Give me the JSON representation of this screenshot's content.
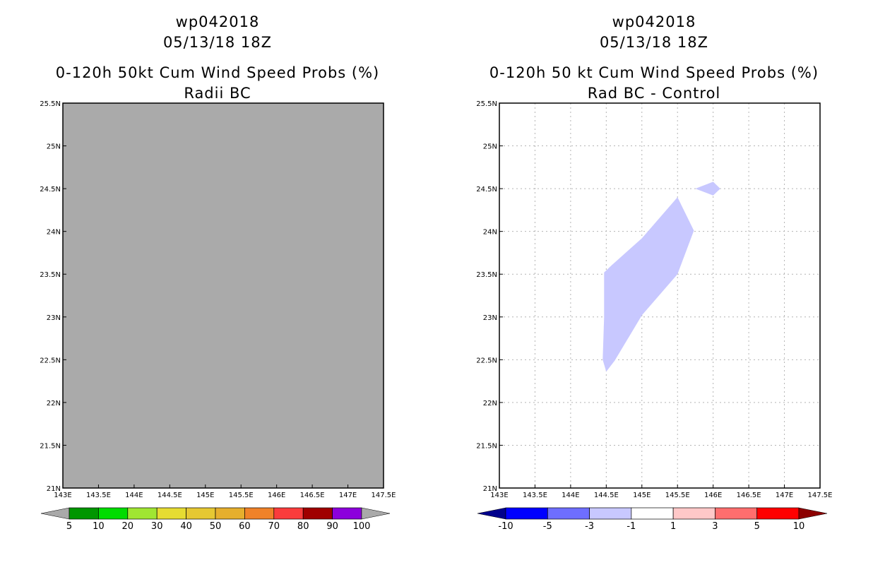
{
  "chart_data": [
    {
      "type": "heatmap",
      "title_lines": [
        "wp042018",
        "05/13/18 18Z",
        "0-120h 50kt Cum Wind Speed Probs (%)",
        "Radii BC"
      ],
      "xlim": [
        143,
        147.5
      ],
      "ylim": [
        21,
        25.5
      ],
      "x_ticks": [
        143,
        143.5,
        144,
        144.5,
        145,
        145.5,
        146,
        146.5,
        147,
        147.5
      ],
      "x_tick_labels": [
        "143E",
        "143.5E",
        "144E",
        "144.5E",
        "145E",
        "145.5E",
        "146E",
        "146.5E",
        "147E",
        "147.5E"
      ],
      "y_ticks": [
        21,
        21.5,
        22,
        22.5,
        23,
        23.5,
        24,
        24.5,
        25,
        25.5
      ],
      "y_tick_labels": [
        "21N",
        "21.5N",
        "22N",
        "22.5N",
        "23N",
        "23.5N",
        "24N",
        "24.5N",
        "25N",
        "25.5N"
      ],
      "grid": false,
      "field_fill": "#aaaaaa",
      "colorbar": {
        "labels": [
          "5",
          "10",
          "20",
          "30",
          "40",
          "50",
          "60",
          "70",
          "80",
          "90",
          "100"
        ],
        "colors": [
          "#009600",
          "#00dc00",
          "#a0e632",
          "#e6dc32",
          "#e6c832",
          "#e6af2d",
          "#f08228",
          "#fa3c3c",
          "#a00000",
          "#8c00dc"
        ],
        "end_low": "#a9a9a9",
        "end_high": "#a9a9a9"
      }
    },
    {
      "type": "heatmap",
      "title_lines": [
        "wp042018",
        "05/13/18 18Z",
        "0-120h 50 kt Cum Wind Speed Probs (%)",
        "Rad BC - Control"
      ],
      "xlim": [
        143,
        147.5
      ],
      "ylim": [
        21,
        25.5
      ],
      "x_ticks": [
        143,
        143.5,
        144,
        144.5,
        145,
        145.5,
        146,
        146.5,
        147,
        147.5
      ],
      "x_tick_labels": [
        "143E",
        "143.5E",
        "144E",
        "144.5E",
        "145E",
        "145.5E",
        "146E",
        "146.5E",
        "147E",
        "147.5E"
      ],
      "y_ticks": [
        21,
        21.5,
        22,
        22.5,
        23,
        23.5,
        24,
        24.5,
        25,
        25.5
      ],
      "y_tick_labels": [
        "21N",
        "21.5N",
        "22N",
        "22.5N",
        "23N",
        "23.5N",
        "24N",
        "24.5N",
        "25N",
        "25.5N"
      ],
      "grid": true,
      "regions": [
        {
          "name": "main-band",
          "color": "#c8c8ff",
          "bin": "-3 to -1",
          "points": [
            [
              144.47,
              23.52
            ],
            [
              144.57,
              23.6
            ],
            [
              145,
              23.92
            ],
            [
              145.5,
              24.4
            ],
            [
              145.73,
              24.01
            ],
            [
              145.5,
              23.5
            ],
            [
              145,
              23.02
            ],
            [
              144.62,
              22.49
            ],
            [
              144.5,
              22.36
            ],
            [
              144.45,
              22.5
            ],
            [
              144.47,
              23.0
            ]
          ]
        },
        {
          "name": "small-patch",
          "color": "#c8c8ff",
          "bin": "-3 to -1",
          "points": [
            [
              145.75,
              24.5
            ],
            [
              146,
              24.58
            ],
            [
              146.1,
              24.5
            ],
            [
              146,
              24.42
            ]
          ]
        }
      ],
      "colorbar": {
        "labels": [
          "-10",
          "-5",
          "-3",
          "-1",
          "1",
          "3",
          "5",
          "10"
        ],
        "colors": [
          "#0000ff",
          "#6e6eff",
          "#c8c8ff",
          "#ffffff",
          "#ffc8c8",
          "#ff6e6e",
          "#ff0000"
        ],
        "end_low": "#00008c",
        "end_high": "#8c0000"
      }
    }
  ]
}
